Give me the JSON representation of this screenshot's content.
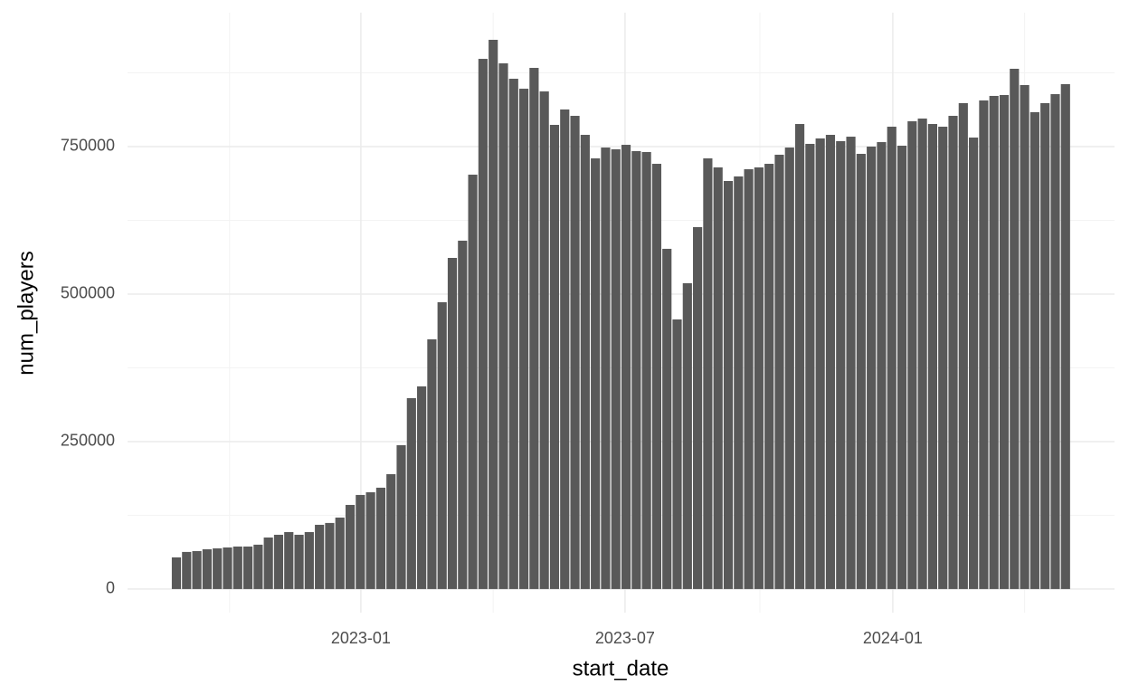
{
  "chart_data": {
    "type": "bar",
    "x_label": "start_date",
    "y_label": "num_players",
    "categories": [
      null,
      null,
      null,
      null,
      null,
      null,
      null,
      null,
      null,
      null,
      null,
      null,
      null,
      null,
      null,
      null,
      null,
      null,
      null,
      null,
      null,
      null,
      null,
      null,
      null,
      null,
      null,
      null,
      null,
      null,
      null,
      null,
      null,
      null,
      null,
      null,
      null,
      null,
      null,
      null,
      null,
      null,
      null,
      null,
      null,
      null,
      null,
      null,
      null,
      null,
      null,
      null,
      null,
      null,
      null,
      null,
      null,
      null,
      null,
      null,
      null,
      null,
      null,
      null,
      null,
      null,
      null,
      null,
      null,
      null,
      null,
      null,
      null,
      null,
      null,
      null,
      null,
      null,
      null,
      null,
      null,
      null,
      null,
      null,
      null,
      null,
      null,
      null
    ],
    "values": [
      53700,
      62900,
      64400,
      67500,
      69000,
      70500,
      72100,
      72100,
      75200,
      87400,
      92000,
      96600,
      92000,
      96600,
      108900,
      112000,
      121200,
      142600,
      159500,
      164100,
      171800,
      194800,
      243900,
      323600,
      343500,
      423300,
      486200,
      561300,
      590500,
      702400,
      898700,
      931000,
      891100,
      865000,
      848100,
      883400,
      843500,
      786800,
      812900,
      802100,
      769900,
      730000,
      748400,
      745400,
      753000,
      742300,
      740800,
      720800,
      576700,
      457000,
      518400,
      613500,
      730000,
      714700,
      691700,
      699400,
      711600,
      714700,
      720800,
      736200,
      748400,
      788300,
      754600,
      763800,
      769900,
      759200,
      766800,
      737700,
      750000,
      757600,
      783700,
      751500,
      792900,
      797500,
      788300,
      783700,
      802100,
      823600,
      765300,
      828200,
      835900,
      837400,
      881900,
      854300,
      808300,
      823600,
      838900,
      855800
    ],
    "color": "#595959",
    "xlim": [
      -4.78,
      91.8
    ],
    "xticks": [
      {
        "value": 18.05,
        "label": "2023-01"
      },
      {
        "value": 43.9,
        "label": "2023-07"
      },
      {
        "value": 70.1,
        "label": "2024-01"
      }
    ],
    "xminor": [
      5.2,
      31.0,
      57.1,
      83.0
    ],
    "ylim": [
      -40000,
      977000
    ],
    "yticks": [
      0,
      250000,
      500000,
      750000
    ],
    "yminor": [
      125000,
      375000,
      625000,
      875000
    ],
    "grid": true
  }
}
